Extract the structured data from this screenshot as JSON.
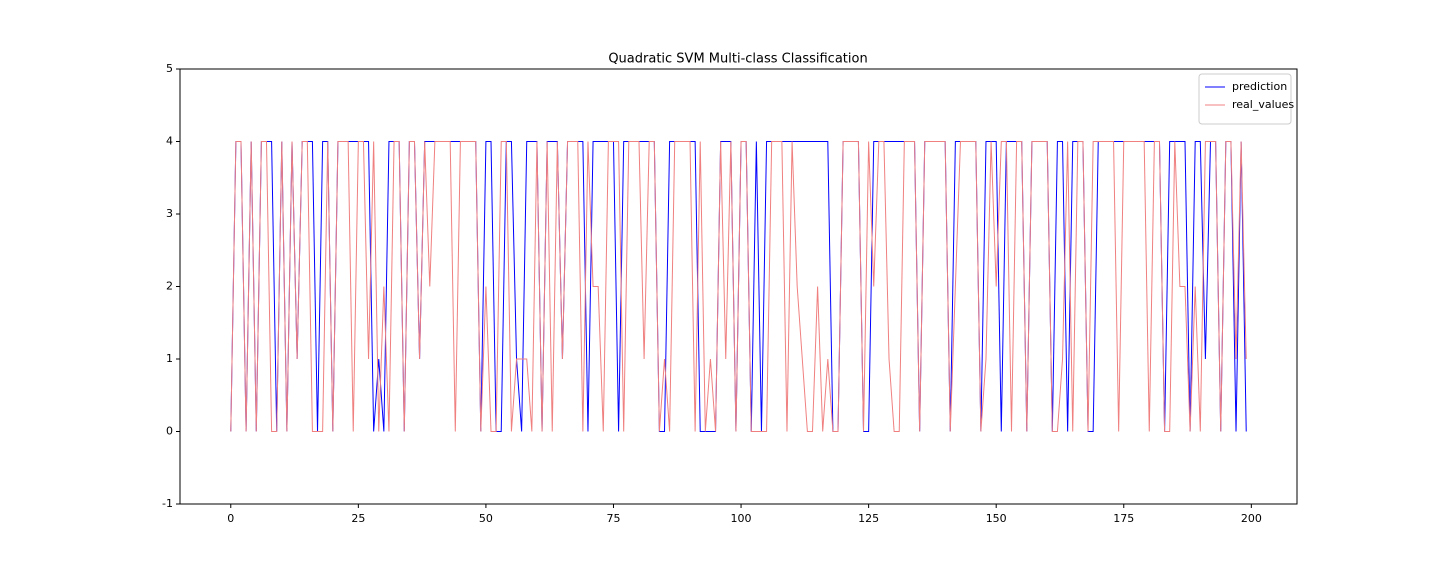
{
  "chart_data": {
    "type": "line",
    "title": "Quadratic SVM Multi-class Classification",
    "x": [
      0,
      1,
      2,
      3,
      4,
      5,
      6,
      7,
      8,
      9,
      10,
      11,
      12,
      13,
      14,
      15,
      16,
      17,
      18,
      19,
      20,
      21,
      22,
      23,
      24,
      25,
      26,
      27,
      28,
      29,
      30,
      31,
      32,
      33,
      34,
      35,
      36,
      37,
      38,
      39,
      40,
      41,
      42,
      43,
      44,
      45,
      46,
      47,
      48,
      49,
      50,
      51,
      52,
      53,
      54,
      55,
      56,
      57,
      58,
      59,
      60,
      61,
      62,
      63,
      64,
      65,
      66,
      67,
      68,
      69,
      70,
      71,
      72,
      73,
      74,
      75,
      76,
      77,
      78,
      79,
      80,
      81,
      82,
      83,
      84,
      85,
      86,
      87,
      88,
      89,
      90,
      91,
      92,
      93,
      94,
      95,
      96,
      97,
      98,
      99,
      100,
      101,
      102,
      103,
      104,
      105,
      106,
      107,
      108,
      109,
      110,
      111,
      112,
      113,
      114,
      115,
      116,
      117,
      118,
      119,
      120,
      121,
      122,
      123,
      124,
      125,
      126,
      127,
      128,
      129,
      130,
      131,
      132,
      133,
      134,
      135,
      136,
      137,
      138,
      139,
      140,
      141,
      142,
      143,
      144,
      145,
      146,
      147,
      148,
      149,
      150,
      151,
      152,
      153,
      154,
      155,
      156,
      157,
      158,
      159,
      160,
      161,
      162,
      163,
      164,
      165,
      166,
      167,
      168,
      169,
      170,
      171,
      172,
      173,
      174,
      175,
      176,
      177,
      178,
      179,
      180,
      181,
      182,
      183,
      184,
      185,
      186,
      187,
      188,
      189,
      190,
      191,
      192,
      193,
      194,
      195,
      196,
      197,
      198,
      199
    ],
    "series": [
      {
        "name": "prediction",
        "color": "#0000ff",
        "values": [
          0,
          4,
          4,
          0,
          4,
          0,
          4,
          4,
          4,
          0,
          4,
          0,
          4,
          1,
          4,
          4,
          4,
          0,
          4,
          4,
          0,
          4,
          4,
          4,
          4,
          4,
          4,
          4,
          0,
          1,
          0,
          4,
          4,
          4,
          0,
          4,
          4,
          1,
          4,
          4,
          4,
          4,
          4,
          4,
          4,
          4,
          4,
          4,
          4,
          0,
          4,
          4,
          0,
          0,
          4,
          4,
          1,
          0,
          4,
          4,
          4,
          0,
          4,
          4,
          4,
          1,
          4,
          4,
          4,
          4,
          0,
          4,
          4,
          4,
          4,
          4,
          0,
          4,
          4,
          4,
          4,
          4,
          4,
          4,
          0,
          0,
          4,
          4,
          4,
          4,
          4,
          4,
          0,
          0,
          0,
          0,
          4,
          4,
          4,
          0,
          4,
          4,
          0,
          4,
          0,
          4,
          4,
          4,
          4,
          4,
          4,
          4,
          4,
          4,
          4,
          4,
          4,
          4,
          0,
          0,
          4,
          4,
          4,
          4,
          0,
          0,
          4,
          4,
          4,
          4,
          4,
          4,
          4,
          4,
          4,
          0,
          4,
          4,
          4,
          4,
          4,
          0,
          4,
          4,
          4,
          4,
          4,
          0,
          4,
          4,
          4,
          0,
          4,
          4,
          4,
          4,
          0,
          4,
          4,
          4,
          4,
          0,
          4,
          4,
          0,
          4,
          4,
          4,
          0,
          0,
          4,
          4,
          4,
          4,
          4,
          4,
          4,
          4,
          4,
          4,
          4,
          4,
          4,
          0,
          4,
          4,
          4,
          4,
          0,
          4,
          4,
          1,
          4,
          4,
          0,
          4,
          4,
          0,
          4,
          0
        ]
      },
      {
        "name": "real_values",
        "color": "#f08080",
        "values": [
          0,
          4,
          4,
          0,
          4,
          0,
          4,
          4,
          0,
          0,
          4,
          0,
          4,
          1,
          4,
          4,
          0,
          0,
          0,
          4,
          0,
          4,
          4,
          4,
          0,
          4,
          4,
          1,
          4,
          0,
          2,
          0,
          4,
          4,
          0,
          4,
          4,
          1,
          4,
          2,
          4,
          4,
          4,
          4,
          0,
          4,
          4,
          4,
          4,
          0,
          2,
          0,
          0,
          4,
          4,
          0,
          1,
          1,
          1,
          0,
          4,
          0,
          4,
          0,
          4,
          1,
          4,
          4,
          4,
          0,
          4,
          2,
          2,
          0,
          4,
          4,
          4,
          0,
          4,
          4,
          4,
          1,
          4,
          4,
          0,
          1,
          0,
          4,
          4,
          4,
          4,
          0,
          4,
          0,
          1,
          0,
          4,
          1,
          4,
          0,
          4,
          4,
          0,
          0,
          0,
          0,
          4,
          4,
          4,
          0,
          4,
          2,
          1,
          0,
          0,
          2,
          0,
          1,
          0,
          0,
          4,
          4,
          4,
          4,
          0,
          4,
          2,
          4,
          4,
          1,
          0,
          0,
          4,
          4,
          4,
          0,
          4,
          4,
          4,
          4,
          4,
          0,
          2,
          4,
          4,
          4,
          4,
          0,
          1,
          4,
          2,
          4,
          4,
          0,
          4,
          4,
          0,
          4,
          4,
          4,
          4,
          0,
          0,
          1,
          4,
          0,
          4,
          4,
          0,
          4,
          4,
          4,
          4,
          4,
          0,
          4,
          4,
          4,
          4,
          4,
          0,
          4,
          4,
          0,
          0,
          4,
          2,
          2,
          0,
          2,
          0,
          4,
          4,
          4,
          0,
          4,
          4,
          1,
          4,
          1
        ]
      }
    ],
    "xlim": [
      -9.95,
      208.95
    ],
    "xticks": [
      0,
      25,
      50,
      75,
      100,
      125,
      150,
      175,
      200
    ],
    "ylim": [
      -1,
      5
    ],
    "yticks": [
      -1,
      0,
      1,
      2,
      3,
      4,
      5
    ],
    "legend": "upper right"
  }
}
